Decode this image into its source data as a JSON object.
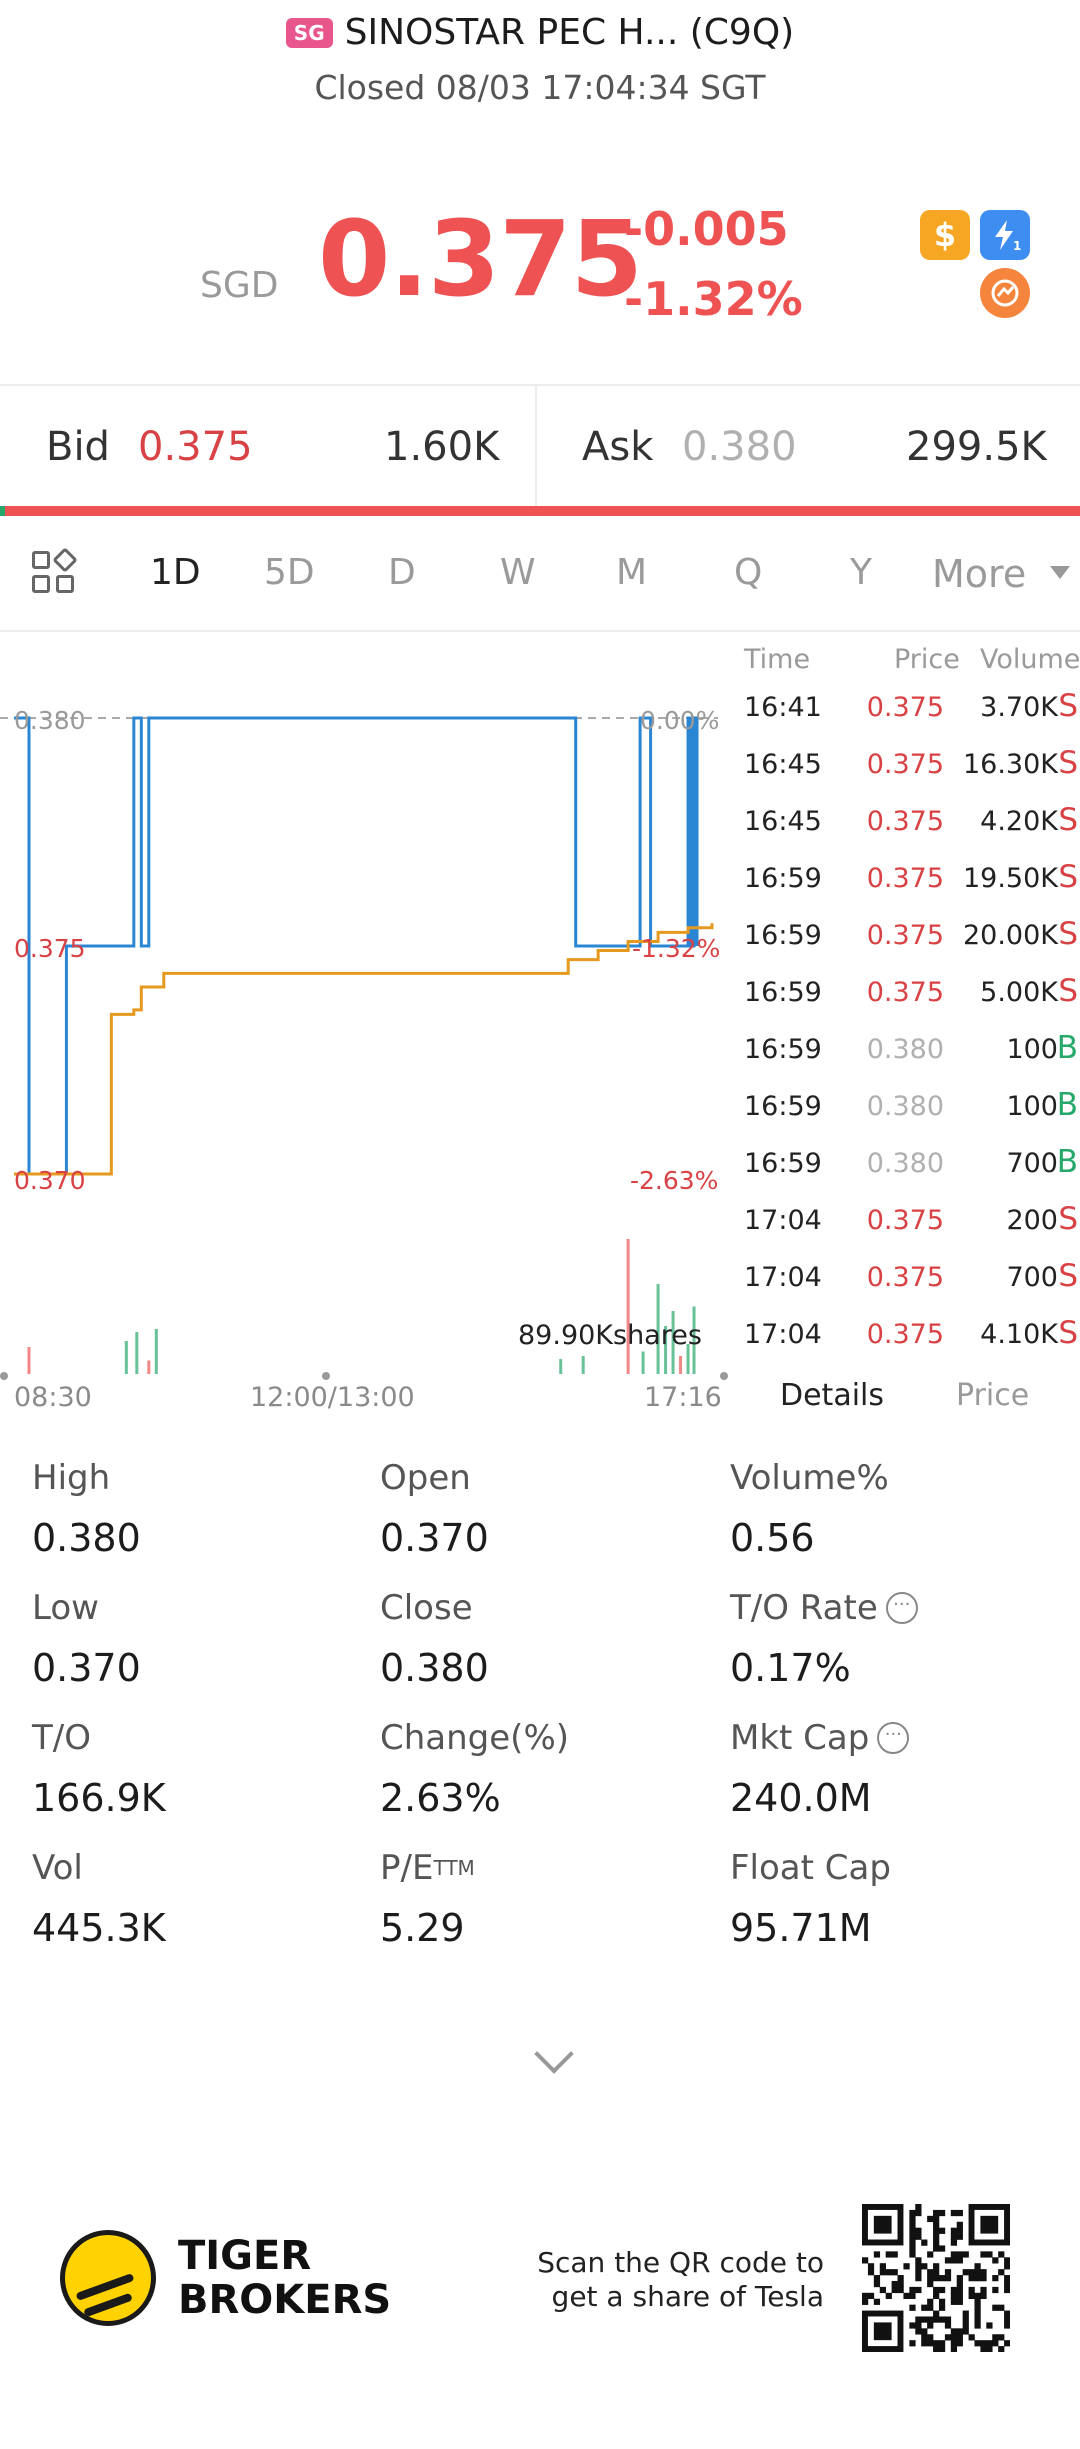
{
  "header": {
    "market_badge": "SG",
    "title": "SINOSTAR PEC H... (C9Q)",
    "status": "Closed 08/03 17:04:34 SGT"
  },
  "quote": {
    "currency": "SGD",
    "price": "0.375",
    "change": "-0.005",
    "change_pct": "-1.32%",
    "icons": [
      "dollar-icon",
      "lightning-level-1-icon",
      "swap-icon"
    ]
  },
  "bidask": {
    "bid_label": "Bid",
    "bid_price": "0.375",
    "bid_volume": "1.60K",
    "ask_label": "Ask",
    "ask_price": "0.380",
    "ask_volume": "299.5K",
    "bid_share": 0.005
  },
  "tabs": {
    "items": [
      "1D",
      "5D",
      "D",
      "W",
      "M",
      "Q",
      "Y"
    ],
    "active": "1D",
    "more_label": "More"
  },
  "chart": {
    "y_high": "0.380",
    "y_mid": "0.375",
    "y_low": "0.370",
    "pct_high": "0.00%",
    "pct_mid": "-1.32%",
    "pct_low": "-2.63%",
    "volume_label": "89.90Kshares",
    "x_start": "08:30",
    "x_mid": "12:00/13:00",
    "x_end": "17:16"
  },
  "chart_data": {
    "type": "line",
    "title": "",
    "xlabel": "",
    "ylabel": "",
    "x_ticks": [
      "08:30",
      "12:00/13:00",
      "17:16"
    ],
    "ylim": [
      0.37,
      0.38
    ],
    "grid": false,
    "series": [
      {
        "kind": "price",
        "color": "#2a86d3",
        "x": [
          "08:30",
          "08:40",
          "09:05",
          "09:40",
          "09:50",
          "09:55",
          "10:00",
          "10:05",
          "15:30",
          "15:45",
          "16:20",
          "16:28",
          "16:35",
          "16:55",
          "17:00",
          "17:02",
          "17:04",
          "17:06"
        ],
        "values": [
          0.38,
          0.37,
          0.375,
          0.375,
          0.38,
          0.375,
          0.38,
          0.38,
          0.38,
          0.375,
          0.375,
          0.38,
          0.375,
          0.375,
          0.38,
          0.375,
          0.38,
          0.375
        ]
      },
      {
        "kind": "average",
        "color": "#e59a1f",
        "x": [
          "08:30",
          "09:30",
          "09:35",
          "09:50",
          "09:55",
          "10:10",
          "15:00",
          "15:40",
          "16:00",
          "16:20",
          "16:40",
          "17:00",
          "17:16"
        ],
        "values": [
          0.37,
          0.37,
          0.3735,
          0.3736,
          0.3741,
          0.3744,
          0.3744,
          0.3747,
          0.3749,
          0.3751,
          0.3753,
          0.3754,
          0.3755
        ]
      }
    ],
    "volume_bars": [
      {
        "x": "08:40",
        "value": 0.18,
        "side": "sell"
      },
      {
        "x": "09:45",
        "value": 0.22,
        "side": "buy"
      },
      {
        "x": "09:52",
        "value": 0.28,
        "side": "buy"
      },
      {
        "x": "10:00",
        "value": 0.09,
        "side": "sell"
      },
      {
        "x": "10:05",
        "value": 0.3,
        "side": "buy"
      },
      {
        "x": "15:35",
        "value": 0.1,
        "side": "buy"
      },
      {
        "x": "15:50",
        "value": 0.12,
        "side": "buy"
      },
      {
        "x": "16:20",
        "value": 0.9,
        "side": "sell"
      },
      {
        "x": "16:30",
        "value": 0.15,
        "side": "buy"
      },
      {
        "x": "16:40",
        "value": 0.6,
        "side": "buy"
      },
      {
        "x": "16:45",
        "value": 0.32,
        "side": "buy"
      },
      {
        "x": "16:50",
        "value": 0.42,
        "side": "buy"
      },
      {
        "x": "16:55",
        "value": 0.12,
        "side": "sell"
      },
      {
        "x": "17:00",
        "value": 0.2,
        "side": "buy"
      },
      {
        "x": "17:04",
        "value": 0.45,
        "side": "buy"
      }
    ]
  },
  "trades": {
    "headers": {
      "time": "Time",
      "price": "Price",
      "volume": "Volume"
    },
    "rows": [
      {
        "time": "16:41",
        "price": "0.375",
        "volume": "3.70K",
        "side": "S"
      },
      {
        "time": "16:45",
        "price": "0.375",
        "volume": "16.30K",
        "side": "S"
      },
      {
        "time": "16:45",
        "price": "0.375",
        "volume": "4.20K",
        "side": "S"
      },
      {
        "time": "16:59",
        "price": "0.375",
        "volume": "19.50K",
        "side": "S"
      },
      {
        "time": "16:59",
        "price": "0.375",
        "volume": "20.00K",
        "side": "S"
      },
      {
        "time": "16:59",
        "price": "0.375",
        "volume": "5.00K",
        "side": "S"
      },
      {
        "time": "16:59",
        "price": "0.380",
        "volume": "100",
        "side": "B"
      },
      {
        "time": "16:59",
        "price": "0.380",
        "volume": "100",
        "side": "B"
      },
      {
        "time": "16:59",
        "price": "0.380",
        "volume": "700",
        "side": "B"
      },
      {
        "time": "17:04",
        "price": "0.375",
        "volume": "200",
        "side": "S"
      },
      {
        "time": "17:04",
        "price": "0.375",
        "volume": "700",
        "side": "S"
      },
      {
        "time": "17:04",
        "price": "0.375",
        "volume": "4.10K",
        "side": "S"
      }
    ],
    "sub_tabs": [
      "Details",
      "Price"
    ],
    "active_sub_tab": "Details"
  },
  "stats": {
    "high_label": "High",
    "high": "0.380",
    "open_label": "Open",
    "open": "0.370",
    "volpct_label": "Volume%",
    "volpct": "0.56",
    "low_label": "Low",
    "low": "0.370",
    "close_label": "Close",
    "close": "0.380",
    "torate_label": "T/O Rate",
    "torate": "0.17%",
    "to_label": "T/O",
    "to": "166.9K",
    "changepct_label": "Change(%)",
    "changepct": "2.63%",
    "mktcap_label": "Mkt Cap",
    "mktcap": "240.0M",
    "vol_label": "Vol",
    "vol": "445.3K",
    "pe_label": "P/E",
    "pe_sup": "TTM",
    "pe": "5.29",
    "floatcap_label": "Float Cap",
    "floatcap": "95.71M"
  },
  "footer": {
    "brand_line1": "TIGER",
    "brand_line2": "BROKERS",
    "promo_line1": "Scan the QR code to",
    "promo_line2": "get a share of Tesla"
  },
  "colors": {
    "up_red": "#ee5253",
    "buy_green": "#27a86b",
    "price_line": "#2a86d3",
    "avg_line": "#e59a1f"
  }
}
